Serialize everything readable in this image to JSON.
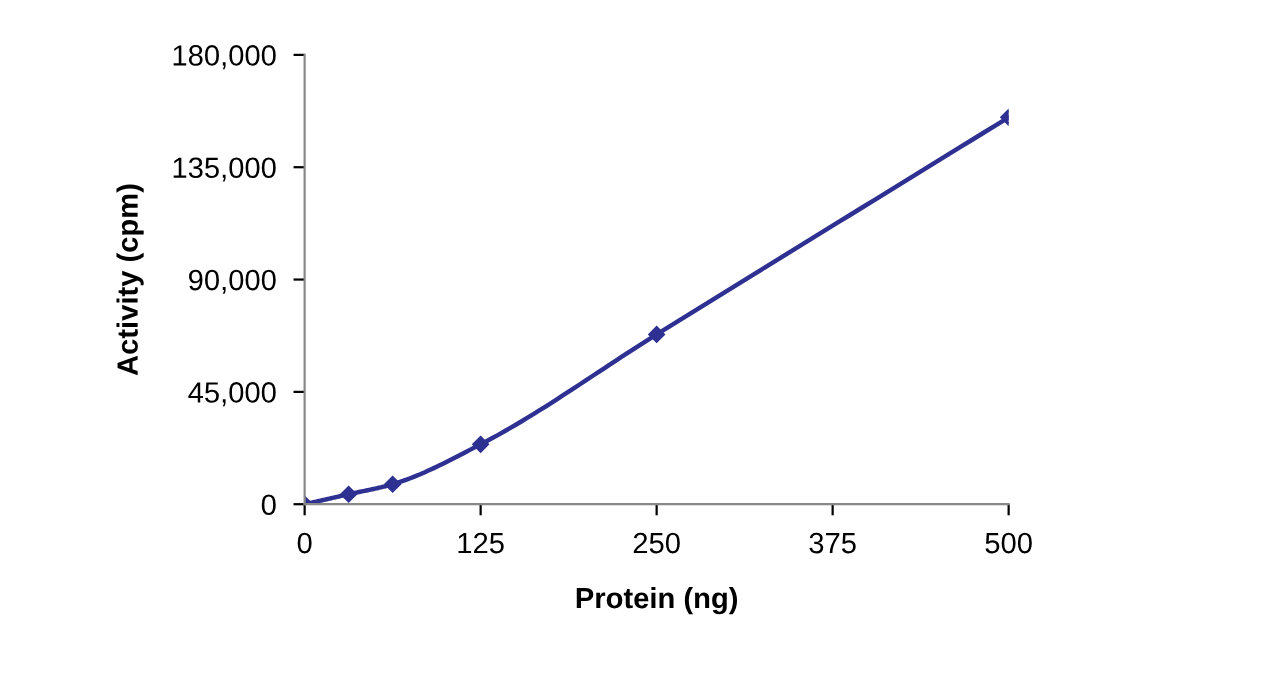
{
  "chart_data": {
    "type": "line",
    "xlabel": "Protein (ng)",
    "ylabel": "Activity (cpm)",
    "x": [
      0,
      31.25,
      62.5,
      125,
      250,
      500
    ],
    "series": [
      {
        "color": "#2e3192",
        "values": [
          0,
          4000,
          8000,
          24000,
          68000,
          155000
        ]
      }
    ],
    "xlim": [
      0,
      500
    ],
    "xticks": [
      0,
      125,
      250,
      375,
      500
    ],
    "ylim": [
      0,
      180000
    ],
    "yticks": [
      {
        "value": 0,
        "label": "0"
      },
      {
        "value": 45000,
        "label": "45,000"
      },
      {
        "value": 90000,
        "label": "90,000"
      },
      {
        "value": 135000,
        "label": "135,000"
      },
      {
        "value": 180000,
        "label": "180,000"
      }
    ],
    "marker": "diamond",
    "line_style": "solid",
    "grid": false
  }
}
